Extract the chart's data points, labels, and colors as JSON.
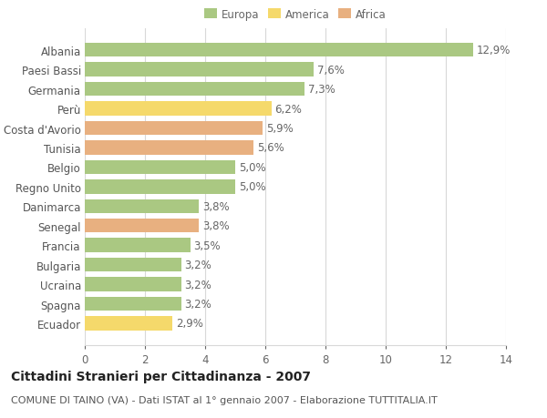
{
  "categories": [
    "Albania",
    "Paesi Bassi",
    "Germania",
    "Perù",
    "Costa d'Avorio",
    "Tunisia",
    "Belgio",
    "Regno Unito",
    "Danimarca",
    "Senegal",
    "Francia",
    "Bulgaria",
    "Ucraina",
    "Spagna",
    "Ecuador"
  ],
  "values": [
    12.9,
    7.6,
    7.3,
    6.2,
    5.9,
    5.6,
    5.0,
    5.0,
    3.8,
    3.8,
    3.5,
    3.2,
    3.2,
    3.2,
    2.9
  ],
  "labels": [
    "12,9%",
    "7,6%",
    "7,3%",
    "6,2%",
    "5,9%",
    "5,6%",
    "5,0%",
    "5,0%",
    "3,8%",
    "3,8%",
    "3,5%",
    "3,2%",
    "3,2%",
    "3,2%",
    "2,9%"
  ],
  "continents": [
    "Europa",
    "Europa",
    "Europa",
    "America",
    "Africa",
    "Africa",
    "Europa",
    "Europa",
    "Europa",
    "Africa",
    "Europa",
    "Europa",
    "Europa",
    "Europa",
    "America"
  ],
  "colors": {
    "Europa": "#aac882",
    "America": "#f5d96b",
    "Africa": "#e8b080"
  },
  "legend_items": [
    "Europa",
    "America",
    "Africa"
  ],
  "xlim": [
    0,
    14
  ],
  "xticks": [
    0,
    2,
    4,
    6,
    8,
    10,
    12,
    14
  ],
  "title": "Cittadini Stranieri per Cittadinanza - 2007",
  "subtitle": "COMUNE DI TAINO (VA) - Dati ISTAT al 1° gennaio 2007 - Elaborazione TUTTITALIA.IT",
  "background_color": "#ffffff",
  "grid_color": "#d8d8d8",
  "bar_height": 0.72,
  "label_fontsize": 8.5,
  "title_fontsize": 10,
  "subtitle_fontsize": 8
}
